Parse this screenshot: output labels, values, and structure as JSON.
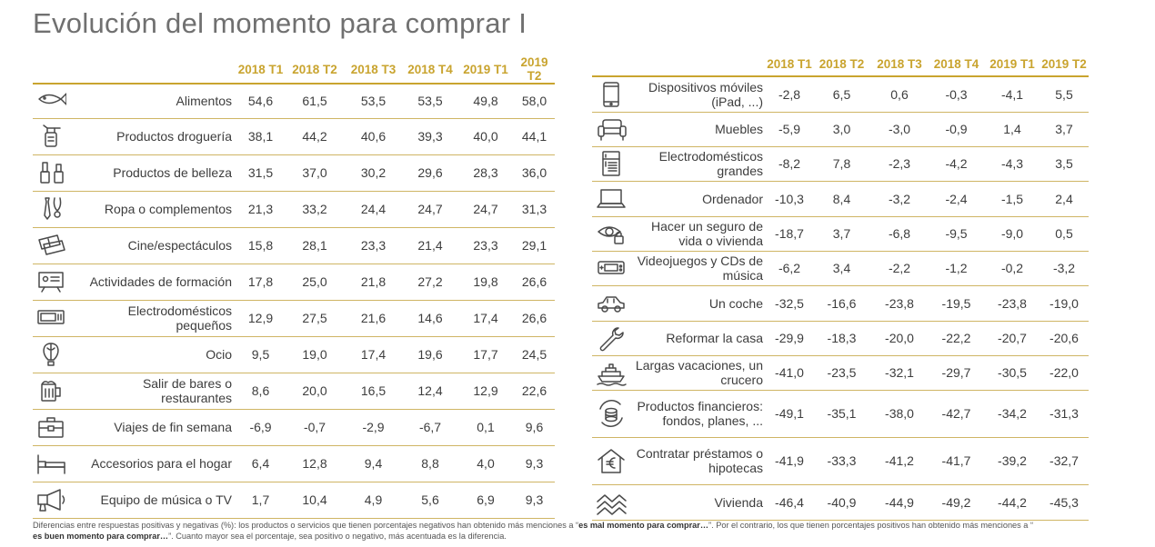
{
  "title": "Evolución del momento para comprar I",
  "periods": [
    "2018 T1",
    "2018 T2",
    "2018 T3",
    "2018 T4",
    "2019 T1",
    "2019 T2"
  ],
  "left_rows": [
    {
      "label": "Alimentos",
      "icon": "fish-icon",
      "values": [
        "54,6",
        "61,5",
        "53,5",
        "53,5",
        "49,8",
        "58,0"
      ]
    },
    {
      "label": "Productos droguería",
      "icon": "spray-bottle-icon",
      "values": [
        "38,1",
        "44,2",
        "40,6",
        "39,3",
        "40,0",
        "44,1"
      ]
    },
    {
      "label": "Productos de belleza",
      "icon": "nail-polish-icon",
      "values": [
        "31,5",
        "37,0",
        "30,2",
        "29,6",
        "28,3",
        "36,0"
      ]
    },
    {
      "label": "Ropa o complementos",
      "icon": "tie-necklace-icon",
      "values": [
        "21,3",
        "33,2",
        "24,4",
        "24,7",
        "24,7",
        "31,3"
      ]
    },
    {
      "label": "Cine/espectáculos",
      "icon": "tickets-icon",
      "values": [
        "15,8",
        "28,1",
        "23,3",
        "21,4",
        "23,3",
        "29,1"
      ]
    },
    {
      "label": "Actividades de formación",
      "icon": "presentation-board-icon",
      "values": [
        "17,8",
        "25,0",
        "21,8",
        "27,2",
        "19,8",
        "26,6"
      ]
    },
    {
      "label": "Electrodomésticos pequeños",
      "icon": "microwave-icon",
      "values": [
        "12,9",
        "27,5",
        "21,6",
        "14,6",
        "17,4",
        "26,6"
      ]
    },
    {
      "label": "Ocio",
      "icon": "hot-air-balloon-icon",
      "values": [
        "9,5",
        "19,0",
        "17,4",
        "19,6",
        "17,7",
        "24,5"
      ]
    },
    {
      "label": "Salir de bares o restaurantes",
      "icon": "beer-mug-icon",
      "values": [
        "8,6",
        "20,0",
        "16,5",
        "12,4",
        "12,9",
        "22,6"
      ]
    },
    {
      "label": "Viajes de fin semana",
      "icon": "suitcase-icon",
      "values": [
        "-6,9",
        "-0,7",
        "-2,9",
        "-6,7",
        "0,1",
        "9,6"
      ]
    },
    {
      "label": "Accesorios para el hogar",
      "icon": "bed-icon",
      "values": [
        "6,4",
        "12,8",
        "9,4",
        "8,8",
        "4,0",
        "9,3"
      ]
    },
    {
      "label": "Equipo de música o TV",
      "icon": "speaker-icon",
      "values": [
        "1,7",
        "10,4",
        "4,9",
        "5,6",
        "6,9",
        "9,3"
      ]
    }
  ],
  "right_rows": [
    {
      "label": "Dispositivos móviles (iPad, ...)",
      "icon": "smartphone-icon",
      "values": [
        "-2,8",
        "6,5",
        "0,6",
        "-0,3",
        "-4,1",
        "5,5"
      ]
    },
    {
      "label": "Muebles",
      "icon": "sofa-icon",
      "values": [
        "-5,9",
        "3,0",
        "-3,0",
        "-0,9",
        "1,4",
        "3,7"
      ]
    },
    {
      "label": "Electrodomésticos grandes",
      "icon": "fridge-icon",
      "values": [
        "-8,2",
        "7,8",
        "-2,3",
        "-4,2",
        "-4,3",
        "3,5"
      ]
    },
    {
      "label": "Ordenador",
      "icon": "laptop-icon",
      "values": [
        "-10,3",
        "8,4",
        "-3,2",
        "-2,4",
        "-1,5",
        "2,4"
      ]
    },
    {
      "label": "Hacer un seguro de vida o vivienda",
      "icon": "eye-lock-icon",
      "values": [
        "-18,7",
        "3,7",
        "-6,8",
        "-9,5",
        "-9,0",
        "0,5"
      ]
    },
    {
      "label": "Videojuegos y CDs de música",
      "icon": "game-console-icon",
      "values": [
        "-6,2",
        "3,4",
        "-2,2",
        "-1,2",
        "-0,2",
        "-3,2"
      ]
    },
    {
      "label": "Un coche",
      "icon": "car-icon",
      "values": [
        "-32,5",
        "-16,6",
        "-23,8",
        "-19,5",
        "-23,8",
        "-19,0"
      ]
    },
    {
      "label": "Reformar la casa",
      "icon": "wrench-icon",
      "values": [
        "-29,9",
        "-18,3",
        "-20,0",
        "-22,2",
        "-20,7",
        "-20,6"
      ]
    },
    {
      "label": "Largas vacaciones, un crucero",
      "icon": "cruise-ship-icon",
      "values": [
        "-41,0",
        "-23,5",
        "-32,1",
        "-29,7",
        "-30,5",
        "-22,0"
      ]
    },
    {
      "label": "Productos financieros: fondos, planes, ...",
      "icon": "coins-cycle-icon",
      "values": [
        "-49,1",
        "-35,1",
        "-38,0",
        "-42,7",
        "-34,2",
        "-31,3"
      ]
    },
    {
      "label": "Contratar préstamos o hipotecas",
      "icon": "house-euro-icon",
      "values": [
        "-41,9",
        "-33,3",
        "-41,2",
        "-41,7",
        "-39,2",
        "-32,7"
      ]
    },
    {
      "label": "Vivienda",
      "icon": "buildings-icon",
      "values": [
        "-46,4",
        "-40,9",
        "-44,9",
        "-49,2",
        "-44,2",
        "-45,3"
      ]
    }
  ],
  "footnote": {
    "p1": "Diferencias entre respuestas positivas y negativas (%): los productos o servicios que tienen porcentajes negativos han obtenido  más menciones a “",
    "b1": "es mal momento para comprar…",
    "p2": "”. Por el contrario, los que tienen porcentajes positivos han obtenido más menciones a “",
    "b2": "es buen momento para comprar…",
    "p3": "”. Cuanto mayor sea el porcentaje, sea positivo o negativo, más acentuada es la diferencia."
  },
  "colors": {
    "accent": "#c9a42f",
    "text": "#3d3d3d",
    "title": "#707070"
  }
}
